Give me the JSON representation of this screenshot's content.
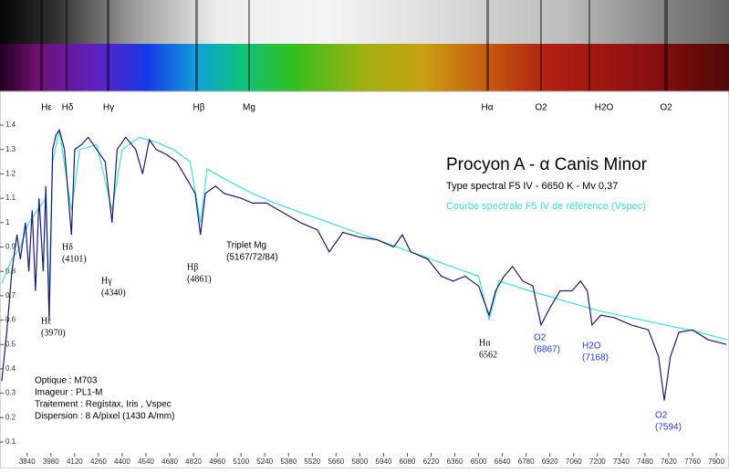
{
  "chart_data": {
    "type": "line",
    "title": "Procyon A - α Canis Minor",
    "subtitle": "Type spectral F5 IV - 6650 K - Mv 0,37",
    "xlim": [
      3680,
      7975
    ],
    "ylim": [
      0.04,
      1.52
    ],
    "xticks": [
      3840,
      3980,
      4120,
      4260,
      4400,
      4540,
      4680,
      4820,
      4960,
      5100,
      5240,
      5380,
      5520,
      5660,
      5800,
      5940,
      6080,
      6220,
      6360,
      6500,
      6640,
      6780,
      6920,
      7060,
      7200,
      7340,
      7480,
      7620,
      7760,
      7900
    ],
    "yticks": [
      0.1,
      0.2,
      0.3,
      0.4,
      0.5,
      0.6,
      0.7,
      0.8,
      0.9,
      1,
      1.1,
      1.2,
      1.3,
      1.4
    ],
    "series": [
      {
        "color": "#1a1a6e",
        "x": [
          3690,
          3720,
          3750,
          3780,
          3800,
          3830,
          3850,
          3870,
          3889,
          3910,
          3935,
          3950,
          3970,
          3990,
          4010,
          4030,
          4060,
          4101,
          4120,
          4160,
          4200,
          4250,
          4300,
          4340,
          4370,
          4420,
          4480,
          4520,
          4560,
          4600,
          4660,
          4720,
          4780,
          4830,
          4861,
          4890,
          4950,
          5000,
          5100,
          5167,
          5250,
          5350,
          5450,
          5550,
          5620,
          5700,
          5800,
          5900,
          6000,
          6050,
          6100,
          6200,
          6280,
          6350,
          6420,
          6500,
          6562,
          6600,
          6650,
          6700,
          6760,
          6820,
          6867,
          6920,
          6980,
          7050,
          7100,
          7140,
          7168,
          7220,
          7300,
          7400,
          7500,
          7560,
          7594,
          7630,
          7680,
          7760,
          7850,
          7960
        ],
        "values": [
          0.35,
          0.55,
          0.8,
          0.95,
          0.85,
          1.0,
          0.8,
          1.05,
          0.72,
          1.1,
          0.8,
          1.15,
          0.6,
          1.3,
          1.36,
          1.38,
          1.3,
          0.95,
          1.3,
          1.32,
          1.35,
          1.3,
          1.25,
          1.0,
          1.3,
          1.35,
          1.3,
          1.2,
          1.34,
          1.3,
          1.28,
          1.25,
          1.18,
          1.12,
          0.95,
          1.12,
          1.15,
          1.12,
          1.1,
          1.08,
          1.08,
          1.04,
          1.0,
          0.97,
          0.88,
          0.96,
          0.94,
          0.93,
          0.9,
          0.95,
          0.88,
          0.85,
          0.78,
          0.76,
          0.78,
          0.74,
          0.62,
          0.72,
          0.78,
          0.82,
          0.76,
          0.74,
          0.58,
          0.65,
          0.72,
          0.72,
          0.76,
          0.72,
          0.58,
          0.62,
          0.61,
          0.58,
          0.56,
          0.45,
          0.27,
          0.45,
          0.55,
          0.56,
          0.52,
          0.5
        ]
      },
      {
        "name": "Courbe spectrale F5 IV de référence (Vspec)",
        "color": "#40e0e0",
        "x": [
          3690,
          3750,
          3800,
          3850,
          3900,
          3950,
          3970,
          3990,
          4030,
          4101,
          4150,
          4250,
          4340,
          4400,
          4500,
          4600,
          4700,
          4800,
          4861,
          4900,
          5000,
          5167,
          5300,
          5500,
          5700,
          5900,
          6100,
          6300,
          6500,
          6562,
          6620,
          6800,
          7000,
          7200,
          7400,
          7600,
          7800,
          7960
        ],
        "values": [
          0.75,
          0.85,
          0.9,
          1.0,
          1.05,
          1.1,
          0.7,
          1.25,
          1.38,
          1.05,
          1.3,
          1.32,
          1.05,
          1.3,
          1.35,
          1.33,
          1.3,
          1.25,
          1.0,
          1.22,
          1.18,
          1.12,
          1.08,
          1.03,
          0.98,
          0.93,
          0.88,
          0.83,
          0.78,
          0.6,
          0.76,
          0.72,
          0.68,
          0.64,
          0.61,
          0.58,
          0.55,
          0.52
        ]
      }
    ],
    "line_markers": [
      "Hε",
      "Hδ",
      "Hγ",
      "Hβ",
      "Mg",
      "Hα",
      "O2",
      "H2O",
      "O2"
    ],
    "annotations": [
      {
        "label": "Hε",
        "sub": "(3970)"
      },
      {
        "label": "Hδ",
        "sub": "(4101)"
      },
      {
        "label": "Hγ",
        "sub": "(4340)"
      },
      {
        "label": "Hβ",
        "sub": "(4861)"
      },
      {
        "label": "Triplet Mg",
        "sub": "(5167/72/84)"
      },
      {
        "label": "Hα",
        "sub": "6562"
      },
      {
        "label": "O2",
        "sub": "(6867)"
      },
      {
        "label": "H2O",
        "sub": "(7168)"
      },
      {
        "label": "O2",
        "sub": "(7594)"
      }
    ],
    "info": [
      "Optique : M703",
      "Imageur : PL1-M",
      "Traitement : Registax, Iris , Vspec",
      "Dispersion : 8 A/pixel (1430 A/mm)"
    ]
  }
}
